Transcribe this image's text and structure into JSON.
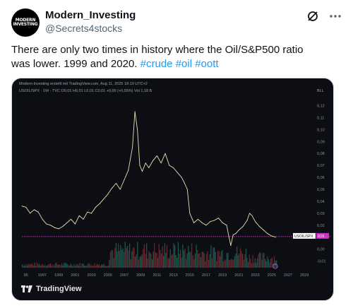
{
  "author": {
    "avatar_text": [
      "MODERN",
      "INVESTING"
    ],
    "name": "Modern_Investing",
    "handle": "@Secrets4stocks"
  },
  "tweet": {
    "text": "There are only two times in history where the Oil/S&P500 ratio was lower. 1999 and 2020.",
    "hashtags": [
      "#crude",
      "#oil",
      "#oott"
    ]
  },
  "icons": [
    "grok-icon",
    "more-options-icon"
  ],
  "chart": {
    "header": "Modern-Investing erstellt mit TradingView.com, Aug 11, 2025 18:10 UTC+2",
    "symbol_line": "USOIL/SPX · 1W · TVC  O0,01  H0,01  L0,01  C0,01  +0,00 (+0,55%)  Vol 1,18 B",
    "currency": "BLL",
    "y_ticks": [
      "0,12",
      "0,11",
      "0,10",
      "0,09",
      "0,08",
      "0,07",
      "0,06",
      "0,05",
      "0,04",
      "0,03",
      "0,02",
      "0,01",
      "0,00",
      "-0,01"
    ],
    "x_ticks": [
      "95",
      "1997",
      "1999",
      "2001",
      "2003",
      "2005",
      "2007",
      "2009",
      "2011",
      "2013",
      "2015",
      "2017",
      "2019",
      "2021",
      "2023",
      "2025",
      "2027",
      "2029"
    ],
    "symbol_label": "USOIL/SPX",
    "last_value_label": "0,01",
    "footer_brand": "TradingView",
    "colors": {
      "background": "#0c0e13",
      "line": "#e8dfb0",
      "price_line": "#d030c8",
      "volume_up": "#1e5b52",
      "volume_down": "#6b2a30",
      "axis_text": "#8a8f98"
    }
  },
  "chart_data": {
    "type": "line",
    "title": "",
    "series": [
      {
        "name": "USOIL/SPX",
        "x": [
          1994.5,
          1995,
          1995.5,
          1996,
          1996.5,
          1997,
          1997.5,
          1998,
          1998.5,
          1999,
          1999.5,
          2000,
          2000.5,
          2001,
          2001.5,
          2002,
          2002.5,
          2003,
          2003.5,
          2004,
          2004.5,
          2005,
          2005.5,
          2006,
          2006.5,
          2007,
          2007.5,
          2008,
          2008.3,
          2008.6,
          2008.9,
          2009.2,
          2009.6,
          2010,
          2010.5,
          2011,
          2011.5,
          2012,
          2012.5,
          2013,
          2013.5,
          2014,
          2014.3,
          2014.7,
          2015,
          2015.5,
          2016,
          2016.5,
          2017,
          2017.5,
          2018,
          2018.5,
          2019,
          2019.5,
          2020,
          2020.3,
          2020.6,
          2021,
          2021.5,
          2022,
          2022.3,
          2022.6,
          2023,
          2023.5,
          2024,
          2024.5,
          2025,
          2025.5
        ],
        "values": [
          0.036,
          0.035,
          0.03,
          0.033,
          0.031,
          0.025,
          0.021,
          0.02,
          0.018,
          0.017,
          0.019,
          0.022,
          0.025,
          0.021,
          0.028,
          0.025,
          0.031,
          0.03,
          0.035,
          0.038,
          0.042,
          0.046,
          0.051,
          0.055,
          0.05,
          0.058,
          0.066,
          0.085,
          0.115,
          0.1,
          0.07,
          0.065,
          0.072,
          0.068,
          0.074,
          0.078,
          0.072,
          0.08,
          0.07,
          0.068,
          0.064,
          0.06,
          0.056,
          0.05,
          0.03,
          0.022,
          0.025,
          0.022,
          0.02,
          0.023,
          0.024,
          0.026,
          0.022,
          0.02,
          0.003,
          0.012,
          0.013,
          0.016,
          0.019,
          0.024,
          0.03,
          0.028,
          0.023,
          0.019,
          0.016,
          0.013,
          0.011,
          0.01
        ]
      }
    ],
    "xlabel": "",
    "ylabel": "",
    "xlim": [
      1994.5,
      2029.5
    ],
    "ylim": [
      -0.012,
      0.125
    ],
    "grid": false
  }
}
